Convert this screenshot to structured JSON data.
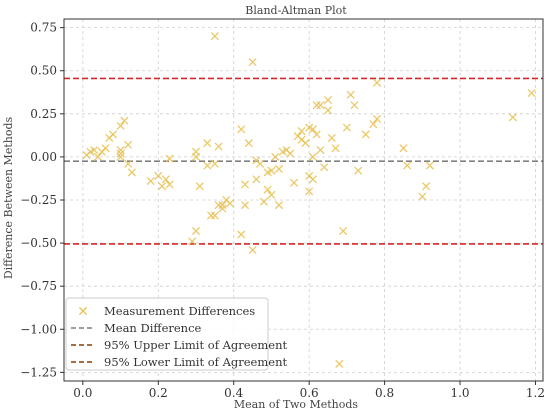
{
  "chart_data": {
    "type": "scatter",
    "title": "Bland-Altman Plot",
    "xlabel": "Mean of Two Methods",
    "ylabel": "Difference Between Methods",
    "xlim": [
      -0.05,
      1.22
    ],
    "ylim": [
      -1.3,
      0.8
    ],
    "xticks": [
      0.0,
      0.2,
      0.4,
      0.6,
      0.8,
      1.0,
      1.2
    ],
    "xtick_labels": [
      "0.0",
      "0.2",
      "0.4",
      "0.6",
      "0.8",
      "1.0",
      "1.2"
    ],
    "yticks": [
      0.75,
      0.5,
      0.25,
      0.0,
      -0.25,
      -0.5,
      -0.75,
      -1.0,
      -1.25
    ],
    "ytick_labels": [
      "0.75",
      "0.50",
      "0.25",
      "0.00",
      "−0.25",
      "−0.50",
      "−0.75",
      "−1.00",
      "−1.25"
    ],
    "grid": true,
    "legend_position": "lower-left",
    "mean_difference": -0.025,
    "upper_limit": 0.455,
    "lower_limit": -0.505,
    "colors": {
      "points": "#e8bf4d",
      "mean": "#808080",
      "upper": "#d62728",
      "lower": "#d62728",
      "legend_upper": "#8c3b00",
      "legend_lower": "#8c3b00"
    },
    "legend": [
      {
        "label": "Measurement Differences",
        "kind": "marker"
      },
      {
        "label": "Mean Difference",
        "kind": "mean"
      },
      {
        "label": "95% Upper Limit of Agreement",
        "kind": "upper"
      },
      {
        "label": "95% Lower Limit of Agreement",
        "kind": "lower"
      }
    ],
    "points": [
      [
        0.01,
        0.01
      ],
      [
        0.02,
        0.03
      ],
      [
        0.03,
        0.04
      ],
      [
        0.04,
        0.0
      ],
      [
        0.05,
        0.03
      ],
      [
        0.06,
        0.05
      ],
      [
        0.07,
        0.11
      ],
      [
        0.08,
        0.13
      ],
      [
        0.1,
        0.02
      ],
      [
        0.1,
        0.0
      ],
      [
        0.1,
        0.04
      ],
      [
        0.1,
        0.18
      ],
      [
        0.11,
        0.21
      ],
      [
        0.12,
        -0.04
      ],
      [
        0.12,
        0.07
      ],
      [
        0.13,
        -0.09
      ],
      [
        0.18,
        -0.14
      ],
      [
        0.2,
        -0.11
      ],
      [
        0.21,
        -0.17
      ],
      [
        0.22,
        -0.13
      ],
      [
        0.23,
        -0.16
      ],
      [
        0.23,
        -0.01
      ],
      [
        0.29,
        -0.49
      ],
      [
        0.3,
        -0.43
      ],
      [
        0.3,
        0.03
      ],
      [
        0.3,
        0.0
      ],
      [
        0.31,
        -0.17
      ],
      [
        0.33,
        -0.05
      ],
      [
        0.33,
        0.08
      ],
      [
        0.34,
        -0.34
      ],
      [
        0.35,
        -0.34
      ],
      [
        0.35,
        -0.04
      ],
      [
        0.35,
        0.7
      ],
      [
        0.36,
        0.06
      ],
      [
        0.36,
        -0.28
      ],
      [
        0.37,
        -0.28
      ],
      [
        0.37,
        -0.3
      ],
      [
        0.38,
        -0.25
      ],
      [
        0.39,
        -0.27
      ],
      [
        0.42,
        -0.45
      ],
      [
        0.42,
        0.16
      ],
      [
        0.43,
        -0.28
      ],
      [
        0.43,
        -0.16
      ],
      [
        0.44,
        0.08
      ],
      [
        0.45,
        0.55
      ],
      [
        0.45,
        -0.54
      ],
      [
        0.46,
        -0.02
      ],
      [
        0.46,
        -0.13
      ],
      [
        0.47,
        -0.04
      ],
      [
        0.48,
        -0.26
      ],
      [
        0.49,
        -0.09
      ],
      [
        0.49,
        -0.19
      ],
      [
        0.5,
        -0.08
      ],
      [
        0.5,
        -0.22
      ],
      [
        0.51,
        0.0
      ],
      [
        0.52,
        -0.07
      ],
      [
        0.52,
        -0.28
      ],
      [
        0.53,
        0.03
      ],
      [
        0.54,
        0.04
      ],
      [
        0.55,
        0.02
      ],
      [
        0.56,
        -0.15
      ],
      [
        0.57,
        0.12
      ],
      [
        0.58,
        0.1
      ],
      [
        0.58,
        0.15
      ],
      [
        0.59,
        0.08
      ],
      [
        0.6,
        0.17
      ],
      [
        0.6,
        -0.11
      ],
      [
        0.6,
        -0.2
      ],
      [
        0.61,
        0.0
      ],
      [
        0.61,
        -0.13
      ],
      [
        0.61,
        0.16
      ],
      [
        0.62,
        0.3
      ],
      [
        0.62,
        0.13
      ],
      [
        0.63,
        0.04
      ],
      [
        0.63,
        0.3
      ],
      [
        0.64,
        -0.06
      ],
      [
        0.65,
        0.33
      ],
      [
        0.65,
        0.27
      ],
      [
        0.66,
        0.11
      ],
      [
        0.67,
        0.05
      ],
      [
        0.68,
        -1.2
      ],
      [
        0.69,
        -0.43
      ],
      [
        0.7,
        0.17
      ],
      [
        0.71,
        0.36
      ],
      [
        0.72,
        0.3
      ],
      [
        0.73,
        -0.08
      ],
      [
        0.75,
        0.13
      ],
      [
        0.77,
        0.19
      ],
      [
        0.78,
        0.43
      ],
      [
        0.78,
        0.22
      ],
      [
        0.85,
        0.05
      ],
      [
        0.86,
        -0.05
      ],
      [
        0.9,
        -0.23
      ],
      [
        0.91,
        -0.17
      ],
      [
        0.92,
        -0.05
      ],
      [
        1.14,
        0.23
      ],
      [
        1.19,
        0.37
      ]
    ]
  }
}
